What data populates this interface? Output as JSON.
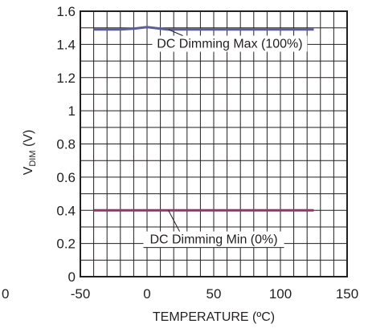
{
  "chart_data": {
    "type": "line",
    "title": "",
    "xlabel": "TEMPERATURE (ºC)",
    "ylabel": {
      "main": "V",
      "sub": "DIM",
      "unit": " (V)"
    },
    "xlim": [
      -50,
      150
    ],
    "ylim": [
      0,
      1.6
    ],
    "x_ticks": [
      "-50",
      "0",
      "50",
      "100",
      "150"
    ],
    "y_ticks": [
      "0",
      "0.2",
      "0.4",
      "0.6",
      "0.8",
      "1",
      "1.2",
      "1.4",
      "1.6"
    ],
    "grid": true,
    "partial_left_label": "0",
    "series": [
      {
        "name": "DC Dimming Max (100%)",
        "color": "#5b5ea6",
        "x": [
          -40,
          -20,
          -10,
          0,
          5,
          15,
          20,
          40,
          60,
          80,
          100,
          125
        ],
        "y": [
          1.49,
          1.49,
          1.495,
          1.505,
          1.5,
          1.49,
          1.49,
          1.49,
          1.49,
          1.49,
          1.49,
          1.49
        ]
      },
      {
        "name": "DC Dimming Min (0%)",
        "color": "#9e2f6a",
        "x": [
          -40,
          -20,
          0,
          20,
          40,
          60,
          80,
          100,
          125
        ],
        "y": [
          0.4,
          0.4,
          0.4,
          0.4,
          0.4,
          0.4,
          0.4,
          0.4,
          0.4
        ]
      }
    ],
    "annotations": [
      {
        "text": "DC Dimming Max (100%)",
        "series": 0,
        "point_x": 16,
        "point_y": 1.49,
        "text_x": 62,
        "text_y": 1.38
      },
      {
        "text": "DC Dimming Min (0%)",
        "series": 1,
        "point_x": 16,
        "point_y": 0.4,
        "text_x": 50,
        "text_y": 0.2
      }
    ]
  }
}
